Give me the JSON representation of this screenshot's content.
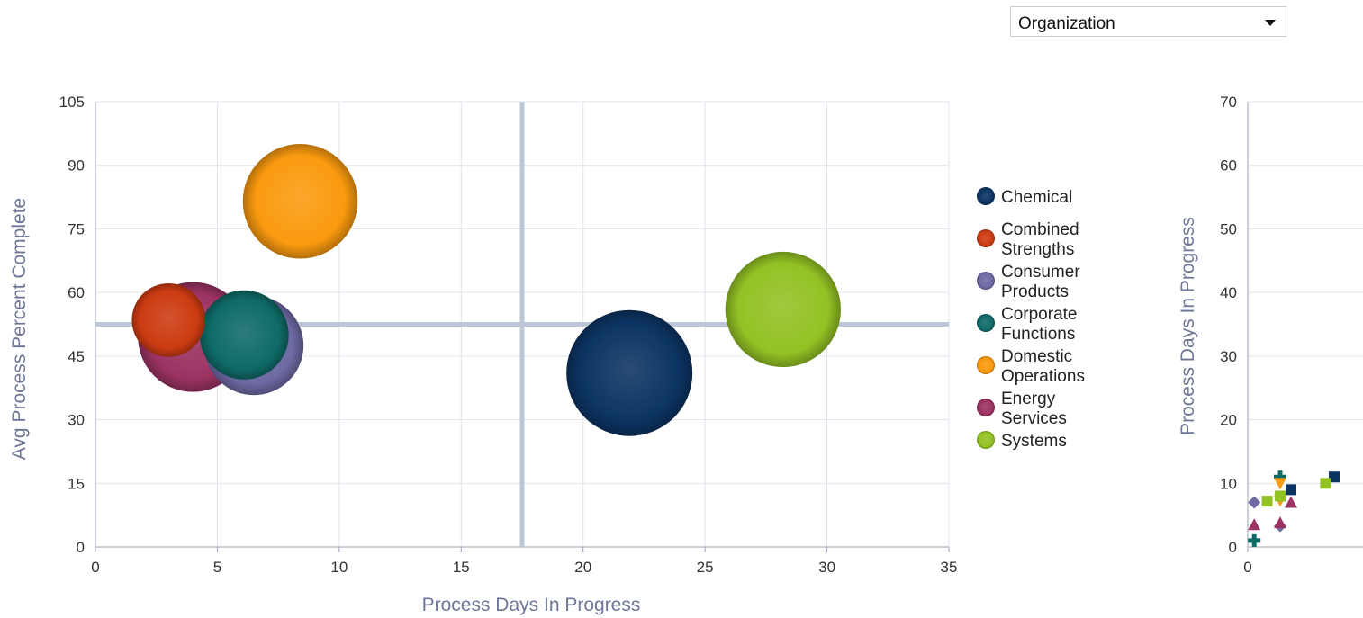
{
  "filter": {
    "selected": "Organization"
  },
  "colors": {
    "Chemical": "#0c3463",
    "Combined Strengths": "#cc3b12",
    "Consumer Products": "#6e6aa4",
    "Corporate Functions": "#0f6b68",
    "Domestic Operations": "#fa9a0f",
    "Energy Services": "#9c3362",
    "Systems": "#93c224",
    "gridline": "#dfe3ec",
    "reference_line": "#bcc6d6",
    "axis_title": "#6e7797"
  },
  "chart_data": [
    {
      "type": "bubble",
      "xlabel": "Process Days In Progress",
      "ylabel": "Avg Process Percent Complete",
      "xlim": [
        0,
        35
      ],
      "ylim": [
        0,
        105
      ],
      "x_ticks": [
        "0",
        "5",
        "10",
        "15",
        "20",
        "25",
        "30",
        "35"
      ],
      "y_ticks": [
        "0",
        "15",
        "30",
        "45",
        "60",
        "75",
        "90",
        "105"
      ],
      "reference_lines": {
        "x": 17.5,
        "y": 52.5
      },
      "grid": true,
      "legend_position": "right",
      "series": [
        {
          "name": "Chemical",
          "x": 21.9,
          "y": 41,
          "size": 100
        },
        {
          "name": "Combined Strengths",
          "x": 3,
          "y": 53.5,
          "size": 34
        },
        {
          "name": "Consumer Products",
          "x": 6.5,
          "y": 47.5,
          "size": 62
        },
        {
          "name": "Corporate Functions",
          "x": 6.1,
          "y": 50,
          "size": 50
        },
        {
          "name": "Domestic Operations",
          "x": 8.4,
          "y": 81.5,
          "size": 83
        },
        {
          "name": "Energy Services",
          "x": 4,
          "y": 49.5,
          "size": 76
        },
        {
          "name": "Systems",
          "x": 28.2,
          "y": 56,
          "size": 84
        }
      ]
    },
    {
      "type": "scatter",
      "ylabel": "Process Days In Progress",
      "ylim": [
        0,
        70
      ],
      "x_ticks": [
        "0"
      ],
      "y_ticks": [
        "0",
        "10",
        "20",
        "30",
        "40",
        "50",
        "60",
        "70"
      ],
      "grid": true,
      "series": [
        {
          "name": "Chemical",
          "marker": "square",
          "points": [
            [
              2,
              9
            ],
            [
              4,
              11
            ]
          ]
        },
        {
          "name": "Corporate Functions",
          "marker": "plus",
          "points": [
            [
              0.3,
              1
            ],
            [
              1.5,
              11
            ]
          ]
        },
        {
          "name": "Consumer Products",
          "marker": "diamond",
          "points": [
            [
              0.3,
              7
            ],
            [
              1.5,
              3.3
            ]
          ]
        },
        {
          "name": "Domestic Operations",
          "marker": "triangle-down",
          "points": [
            [
              1.5,
              10
            ],
            [
              1.5,
              7.3
            ]
          ]
        },
        {
          "name": "Energy Services",
          "marker": "triangle-up",
          "points": [
            [
              0.3,
              3.5
            ],
            [
              1.5,
              3.8
            ],
            [
              2,
              7
            ]
          ]
        },
        {
          "name": "Systems",
          "marker": "square",
          "points": [
            [
              0.9,
              7.2
            ],
            [
              1.5,
              8
            ],
            [
              3.6,
              10
            ]
          ]
        }
      ]
    }
  ]
}
